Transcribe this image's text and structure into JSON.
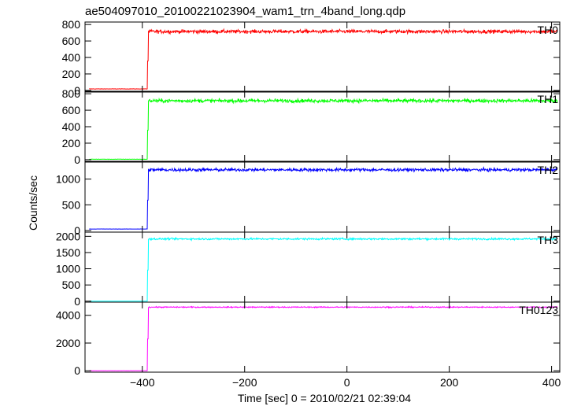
{
  "title": "ae504097010_20100221023904_wam1_trn_4band_long.qdp",
  "chart_data": {
    "type": "line",
    "title": "ae504097010_20100221023904_wam1_trn_4band_long.qdp",
    "xlabel": "Time [sec] 0 = 2010/02/21 02:39:04",
    "ylabel": "Counts/sec",
    "xlim": [
      -512,
      416
    ],
    "x_ticks": [
      -400,
      -200,
      0,
      200,
      400
    ],
    "x_tick_labels": [
      "−400",
      "−200",
      "0",
      "200",
      "400"
    ],
    "grid": false,
    "step_time": -390,
    "panels": [
      {
        "label": "TH0",
        "color": "#ff0000",
        "ylim": [
          -20,
          830
        ],
        "y_ticks": [
          0,
          200,
          400,
          600,
          800
        ],
        "series": [
          {
            "name": "TH0",
            "pre_level": 18,
            "post_level": 715,
            "noise": 28
          }
        ]
      },
      {
        "label": "TH1",
        "color": "#00ff00",
        "ylim": [
          -20,
          830
        ],
        "y_ticks": [
          0,
          200,
          400,
          600,
          800
        ],
        "series": [
          {
            "name": "TH1",
            "pre_level": 5,
            "post_level": 715,
            "noise": 28
          }
        ]
      },
      {
        "label": "TH2",
        "color": "#0000ff",
        "ylim": [
          -30,
          1330
        ],
        "y_ticks": [
          0,
          500,
          1000
        ],
        "series": [
          {
            "name": "TH2",
            "pre_level": 30,
            "post_level": 1180,
            "noise": 40
          }
        ]
      },
      {
        "label": "TH3",
        "color": "#00ffff",
        "ylim": [
          -30,
          2130
        ],
        "y_ticks": [
          0,
          500,
          1000,
          1500,
          2000
        ],
        "series": [
          {
            "name": "TH3",
            "pre_level": 0,
            "post_level": 1920,
            "noise": 35
          }
        ]
      },
      {
        "label": "TH0123",
        "color": "#ff00ff",
        "ylim": [
          -100,
          4950
        ],
        "y_ticks": [
          0,
          2000,
          4000
        ],
        "series": [
          {
            "name": "TH0123",
            "pre_level": 5,
            "post_level": 4590,
            "noise": 50
          }
        ]
      }
    ]
  }
}
